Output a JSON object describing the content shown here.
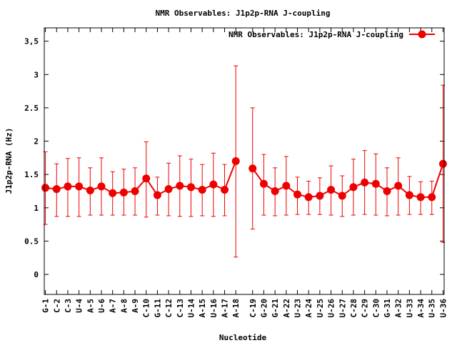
{
  "chart_data": {
    "type": "line",
    "title": "NMR Observables: J1p2p-RNA J-coupling",
    "xlabel": "Nucleotide",
    "ylabel": "J1p2p-RNA (Hz)",
    "ylim": [
      -0.3,
      3.7
    ],
    "yticks": [
      "0",
      "0.5",
      "1",
      "1.5",
      "2",
      "2.5",
      "3",
      "3,5"
    ],
    "ytick_values": [
      0,
      0.5,
      1,
      1.5,
      2,
      2.5,
      3,
      3.5
    ],
    "legend_position": "top-right",
    "categories": [
      "G-1",
      "C-2",
      "C-3",
      "U-4",
      "A-5",
      "U-6",
      "A-7",
      "A-8",
      "A-9",
      "C-10",
      "G-11",
      "C-12",
      "C-13",
      "U-14",
      "A-15",
      "U-16",
      "A-17",
      "A-18",
      "C-19",
      "G-20",
      "G-21",
      "A-22",
      "U-23",
      "A-24",
      "U-25",
      "U-26",
      "U-27",
      "C-28",
      "C-29",
      "C-30",
      "G-31",
      "A-32",
      "U-33",
      "A-34",
      "U-35",
      "U-36"
    ],
    "x_positions": [
      1,
      2,
      3,
      4,
      5,
      6,
      7,
      8,
      9,
      10,
      11,
      12,
      13,
      14,
      15,
      16,
      17,
      18,
      19.5,
      20.5,
      21.5,
      22.5,
      23.5,
      24.5,
      25.5,
      26.5,
      27.5,
      28.5,
      29.5,
      30.5,
      31.5,
      32.5,
      33.5,
      34.5,
      35.5,
      36.5
    ],
    "xlim": [
      0.9,
      36.6
    ],
    "series": [
      {
        "name": "NMR Observables: J1p2p-RNA J-coupling",
        "color": "#ee0000",
        "segments": [
          [
            0,
            17
          ],
          [
            18,
            35
          ]
        ],
        "values": [
          1.3,
          1.28,
          1.32,
          1.32,
          1.26,
          1.32,
          1.22,
          1.23,
          1.25,
          1.44,
          1.19,
          1.28,
          1.33,
          1.31,
          1.27,
          1.35,
          1.27,
          1.7,
          1.59,
          1.36,
          1.25,
          1.33,
          1.2,
          1.16,
          1.18,
          1.27,
          1.18,
          1.31,
          1.38,
          1.36,
          1.25,
          1.33,
          1.19,
          1.16,
          1.16,
          1.66
        ],
        "err_low": [
          0.75,
          0.87,
          0.87,
          0.87,
          0.89,
          0.89,
          0.89,
          0.89,
          0.89,
          0.86,
          0.89,
          0.88,
          0.87,
          0.87,
          0.88,
          0.87,
          0.88,
          0.26,
          0.68,
          0.89,
          0.88,
          0.89,
          0.9,
          0.9,
          0.9,
          0.89,
          0.87,
          0.89,
          0.9,
          0.89,
          0.88,
          0.89,
          0.9,
          0.9,
          0.9,
          0.48
        ],
        "err_high": [
          1.84,
          1.66,
          1.74,
          1.75,
          1.6,
          1.75,
          1.54,
          1.58,
          1.6,
          1.99,
          1.46,
          1.67,
          1.78,
          1.73,
          1.65,
          1.82,
          1.65,
          3.13,
          2.5,
          1.8,
          1.6,
          1.77,
          1.46,
          1.4,
          1.45,
          1.63,
          1.48,
          1.73,
          1.86,
          1.81,
          1.6,
          1.75,
          1.47,
          1.39,
          1.4,
          2.84
        ]
      }
    ]
  }
}
